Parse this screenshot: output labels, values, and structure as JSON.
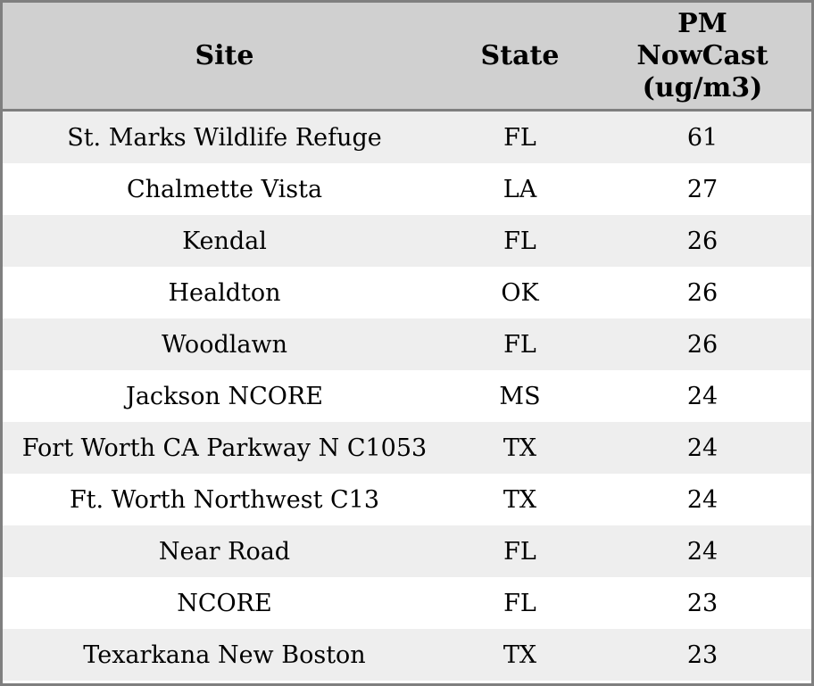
{
  "colors": {
    "header_bg": "#d0d0d0",
    "border": "#7f7f7f",
    "row_stripe": "#eeeeee",
    "row_plain": "#ffffff",
    "text": "#000000"
  },
  "header": {
    "site_label": "Site",
    "state_label": "State",
    "value_label": "PM\nNowCast\n(ug/m3)"
  },
  "chart_data": {
    "type": "table",
    "title": "PM NowCast readings by site",
    "columns": [
      "Site",
      "State",
      "PM NowCast (ug/m3)"
    ],
    "rows": [
      {
        "site": "St. Marks Wildlife Refuge",
        "state": "FL",
        "value": 61
      },
      {
        "site": "Chalmette Vista",
        "state": "LA",
        "value": 27
      },
      {
        "site": "Kendal",
        "state": "FL",
        "value": 26
      },
      {
        "site": "Healdton",
        "state": "OK",
        "value": 26
      },
      {
        "site": "Woodlawn",
        "state": "FL",
        "value": 26
      },
      {
        "site": "Jackson NCORE",
        "state": "MS",
        "value": 24
      },
      {
        "site": "Fort Worth CA Parkway N C1053",
        "state": "TX",
        "value": 24
      },
      {
        "site": "Ft. Worth Northwest C13",
        "state": "TX",
        "value": 24
      },
      {
        "site": "Near Road",
        "state": "FL",
        "value": 24
      },
      {
        "site": "NCORE",
        "state": "FL",
        "value": 23
      },
      {
        "site": "Texarkana New Boston",
        "state": "TX",
        "value": 23
      }
    ]
  }
}
